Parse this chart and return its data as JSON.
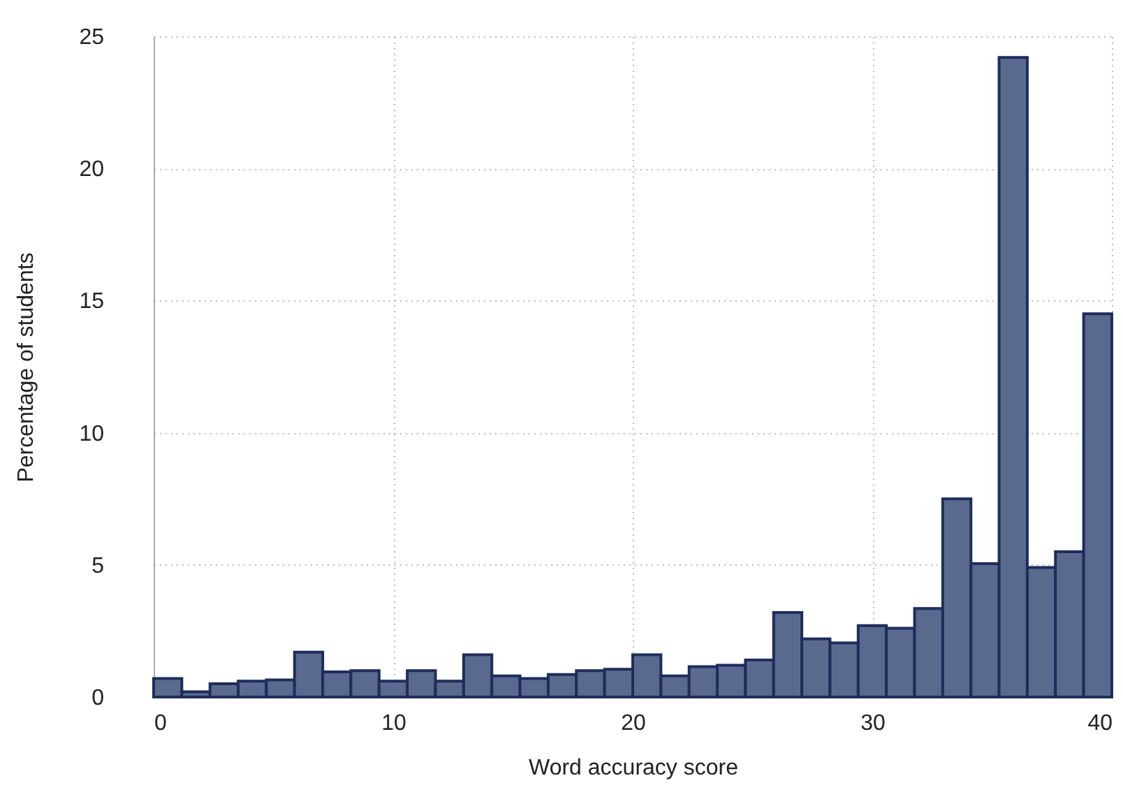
{
  "chart_data": {
    "type": "histogram",
    "xlabel": "Word accuracy score",
    "ylabel": "Percentage of students",
    "bins": [
      0,
      1.176,
      2.353,
      3.529,
      4.706,
      5.882,
      7.059,
      8.235,
      9.412,
      10.588,
      11.765,
      12.941,
      14.118,
      15.294,
      16.471,
      17.647,
      18.824,
      20,
      21.176,
      22.353,
      23.529,
      24.706,
      25.882,
      27.059,
      28.235,
      29.412,
      30.588,
      31.765,
      32.941,
      34.118,
      35.294,
      36.471,
      37.647,
      38.824,
      40
    ],
    "values": [
      0.7,
      0.2,
      0.5,
      0.6,
      0.65,
      1.7,
      0.95,
      1.0,
      0.6,
      1.0,
      0.6,
      1.6,
      0.8,
      0.7,
      0.85,
      1.0,
      1.05,
      1.6,
      0.8,
      1.15,
      1.2,
      1.4,
      3.2,
      2.2,
      2.05,
      2.7,
      2.6,
      3.35,
      7.5,
      5.05,
      24.2,
      4.9,
      5.5,
      14.5
    ],
    "color": "#5a6a8e",
    "xlim": [
      0,
      40
    ],
    "xticks": [
      0,
      10,
      20,
      30,
      40
    ],
    "ylim": [
      0,
      25
    ],
    "yticks": [
      0,
      5,
      10,
      15,
      20,
      25
    ],
    "grid": true
  }
}
